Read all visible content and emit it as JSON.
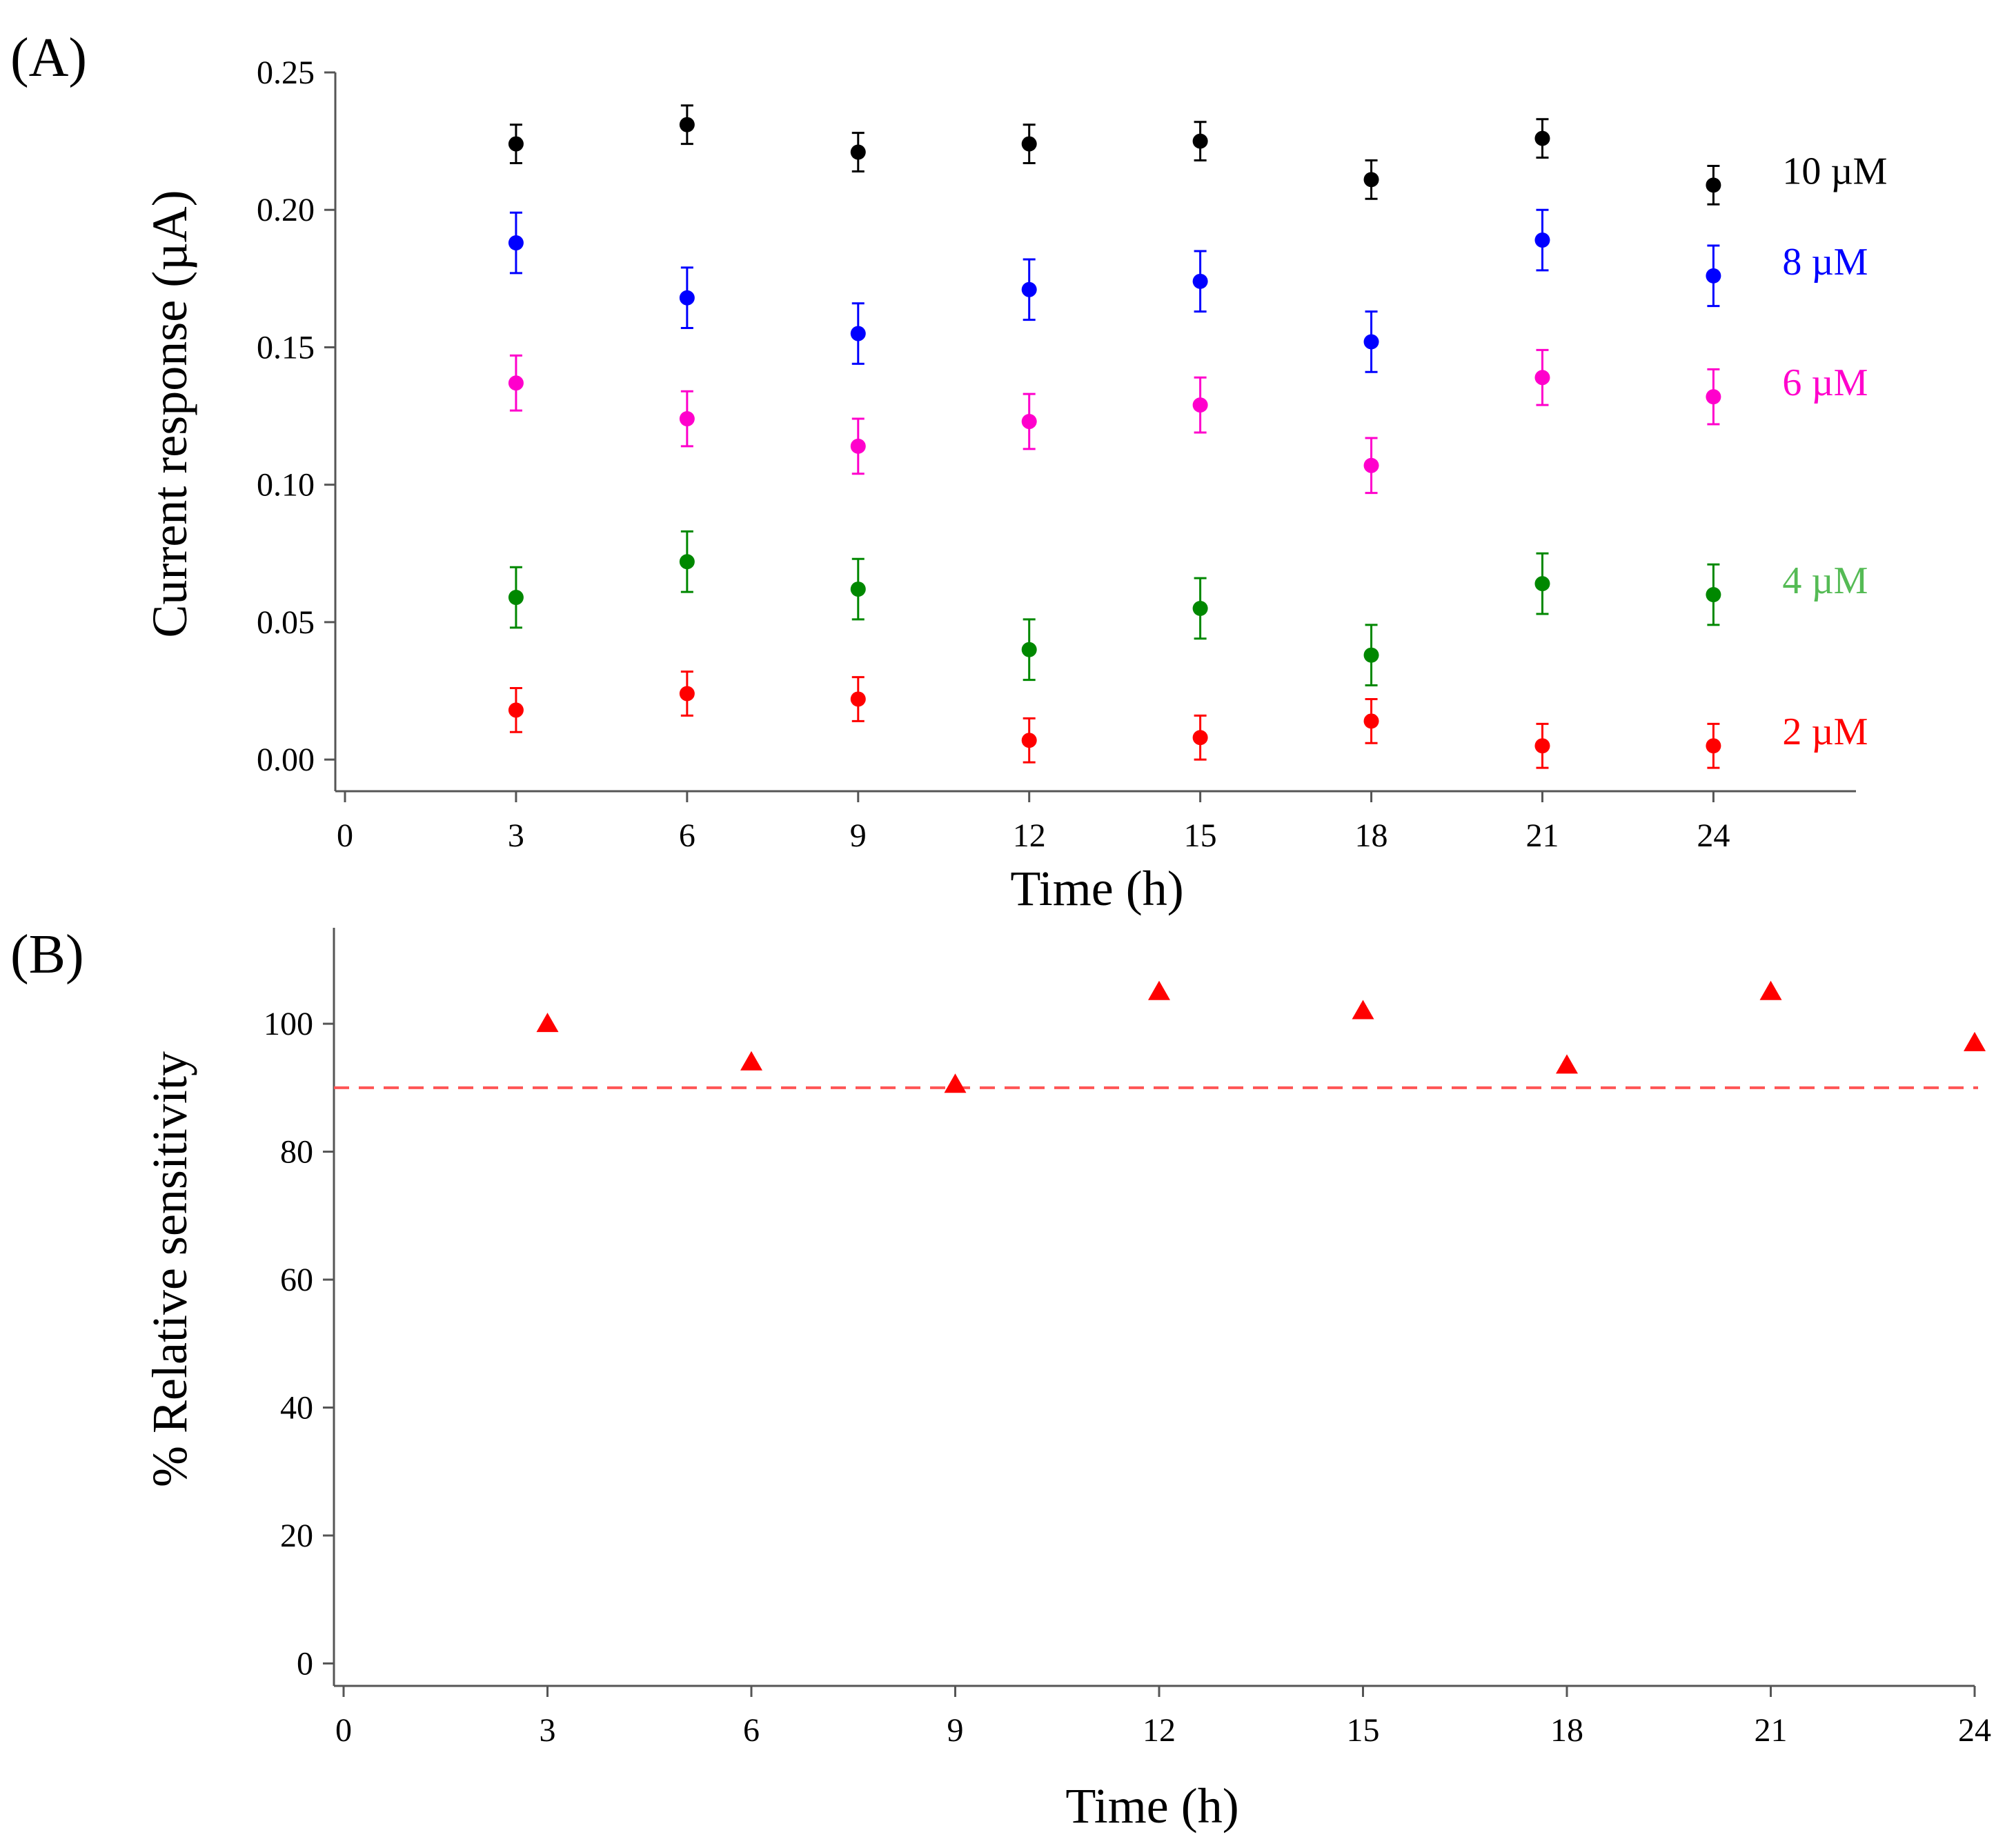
{
  "colors": {
    "10uM": "#000000",
    "8uM": "#0000ff",
    "6uM": "#ff00cc",
    "4uM": "#008800",
    "2uM": "#ff0000",
    "4uM_label": "#55bb55",
    "threshold": "#ff5555",
    "axis": "#555555"
  },
  "chart_data": [
    {
      "panel_label": "(A)",
      "type": "scatter",
      "xlabel": "Time (h)",
      "ylabel": "Current response (µA)",
      "xlim": [
        0,
        26.5
      ],
      "ylim": [
        -0.008,
        0.25
      ],
      "x_ticks": [
        "0",
        "3",
        "6",
        "9",
        "12",
        "15",
        "18",
        "21",
        "24"
      ],
      "y_ticks": [
        "0.00",
        "0.05",
        "0.10",
        "0.15",
        "0.20",
        "0.25"
      ],
      "legend_position": "right",
      "series": [
        {
          "name": "10 µM",
          "color_key": "10uM",
          "label_color_key": "10uM",
          "x": [
            3,
            6,
            9,
            12,
            15,
            18,
            21,
            24
          ],
          "y": [
            0.224,
            0.231,
            0.221,
            0.224,
            0.225,
            0.211,
            0.226,
            0.209
          ],
          "err": [
            0.007,
            0.007,
            0.007,
            0.007,
            0.007,
            0.007,
            0.007,
            0.007
          ]
        },
        {
          "name": "8 µM",
          "color_key": "8uM",
          "label_color_key": "8uM",
          "x": [
            3,
            6,
            9,
            12,
            15,
            18,
            21,
            24
          ],
          "y": [
            0.188,
            0.168,
            0.155,
            0.171,
            0.174,
            0.152,
            0.189,
            0.176
          ],
          "err": [
            0.011,
            0.011,
            0.011,
            0.011,
            0.011,
            0.011,
            0.011,
            0.011
          ]
        },
        {
          "name": "6 µM",
          "color_key": "6uM",
          "label_color_key": "6uM",
          "x": [
            3,
            6,
            9,
            12,
            15,
            18,
            21,
            24
          ],
          "y": [
            0.137,
            0.124,
            0.114,
            0.123,
            0.129,
            0.107,
            0.139,
            0.132
          ],
          "err": [
            0.01,
            0.01,
            0.01,
            0.01,
            0.01,
            0.01,
            0.01,
            0.01
          ]
        },
        {
          "name": "4 µM",
          "color_key": "4uM",
          "label_color_key": "4uM_label",
          "x": [
            3,
            6,
            9,
            12,
            15,
            18,
            21,
            24
          ],
          "y": [
            0.059,
            0.072,
            0.062,
            0.04,
            0.055,
            0.038,
            0.064,
            0.06
          ],
          "err": [
            0.011,
            0.011,
            0.011,
            0.011,
            0.011,
            0.011,
            0.011,
            0.011
          ]
        },
        {
          "name": "2 µM",
          "color_key": "2uM",
          "label_color_key": "2uM",
          "x": [
            3,
            6,
            9,
            12,
            15,
            18,
            21,
            24
          ],
          "y": [
            0.018,
            0.024,
            0.022,
            0.007,
            0.008,
            0.014,
            0.005,
            0.005
          ],
          "err": [
            0.008,
            0.008,
            0.008,
            0.008,
            0.008,
            0.008,
            0.008,
            0.008
          ]
        }
      ]
    },
    {
      "panel_label": "(B)",
      "type": "scatter",
      "xlabel": "Time (h)",
      "ylabel": "% Relative sensitivity",
      "xlim": [
        0,
        24
      ],
      "ylim": [
        -2,
        115
      ],
      "x_ticks": [
        "0",
        "3",
        "6",
        "9",
        "12",
        "15",
        "18",
        "21",
        "24"
      ],
      "y_ticks": [
        "0",
        "20",
        "40",
        "60",
        "80",
        "100"
      ],
      "reference_line": 90,
      "series": [
        {
          "name": "relative sensitivity",
          "color_key": "2uM",
          "marker": "triangle",
          "x": [
            3,
            6,
            9,
            12,
            15,
            18,
            21,
            24
          ],
          "y": [
            100,
            94,
            90.5,
            105,
            102,
            93.5,
            105,
            97
          ]
        }
      ]
    }
  ]
}
